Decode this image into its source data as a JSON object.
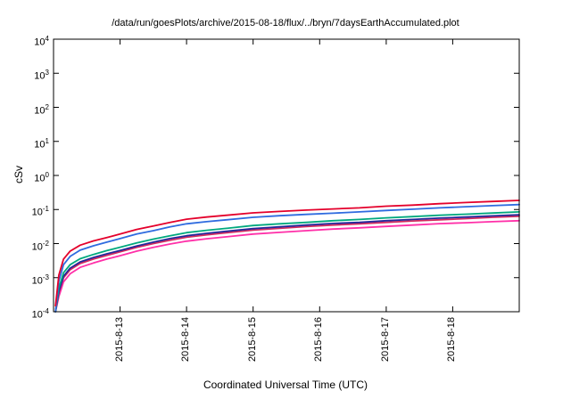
{
  "chart_data": {
    "type": "line",
    "title": "/data/run/goesPlots/archive/2015-08-18/flux/../bryn/7daysEarthAccumulated.plot",
    "xlabel": "Coordinated Universal Time (UTC)",
    "ylabel": "cSv",
    "grid": false,
    "legend": "none",
    "x_axis": {
      "range_days": [
        12,
        19
      ],
      "ticks": [
        {
          "label": "2015-8-13",
          "day": 13
        },
        {
          "label": "2015-8-14",
          "day": 14
        },
        {
          "label": "2015-8-15",
          "day": 15
        },
        {
          "label": "2015-8-16",
          "day": 16
        },
        {
          "label": "2015-8-17",
          "day": 17
        },
        {
          "label": "2015-8-18",
          "day": 18
        }
      ]
    },
    "y_axis": {
      "scale": "log",
      "range": [
        0.0001,
        10000
      ],
      "tick_exponents": [
        4,
        3,
        2,
        1,
        0,
        -1,
        -2,
        -3,
        -4
      ]
    },
    "x_days": [
      12.03,
      12.08,
      12.15,
      12.25,
      12.4,
      12.6,
      12.8,
      13.0,
      13.25,
      13.5,
      13.75,
      14.0,
      14.3,
      14.6,
      15.0,
      15.4,
      15.8,
      16.2,
      16.6,
      17.0,
      17.4,
      17.8,
      18.2,
      18.6,
      19.0
    ],
    "series": [
      {
        "name": "red",
        "color": "#e4002b",
        "values": [
          0.00015,
          0.0012,
          0.0035,
          0.006,
          0.009,
          0.012,
          0.015,
          0.019,
          0.026,
          0.033,
          0.042,
          0.052,
          0.06,
          0.068,
          0.08,
          0.088,
          0.096,
          0.104,
          0.112,
          0.125,
          0.135,
          0.148,
          0.16,
          0.172,
          0.185
        ]
      },
      {
        "name": "blue",
        "color": "#2f6bdf",
        "values": [
          0.0001,
          0.0008,
          0.0024,
          0.0042,
          0.0064,
          0.0086,
          0.011,
          0.014,
          0.019,
          0.024,
          0.031,
          0.038,
          0.044,
          0.05,
          0.059,
          0.066,
          0.072,
          0.078,
          0.085,
          0.094,
          0.102,
          0.112,
          0.121,
          0.13,
          0.14
        ]
      },
      {
        "name": "teal",
        "color": "#00a87e",
        "values": [
          0.0001,
          0.0005,
          0.0014,
          0.0024,
          0.0036,
          0.0048,
          0.0062,
          0.0078,
          0.0105,
          0.0135,
          0.017,
          0.021,
          0.0245,
          0.028,
          0.034,
          0.038,
          0.042,
          0.047,
          0.051,
          0.057,
          0.062,
          0.068,
          0.073,
          0.079,
          0.085
        ]
      },
      {
        "name": "navy",
        "color": "#23279b",
        "values": [
          0.0001,
          0.0004,
          0.0011,
          0.0019,
          0.0029,
          0.0039,
          0.005,
          0.0063,
          0.0085,
          0.011,
          0.014,
          0.017,
          0.02,
          0.023,
          0.0275,
          0.031,
          0.035,
          0.039,
          0.042,
          0.047,
          0.051,
          0.056,
          0.06,
          0.065,
          0.07
        ]
      },
      {
        "name": "crimson",
        "color": "#d42a5e",
        "values": [
          0.0001,
          0.00036,
          0.001,
          0.0017,
          0.0026,
          0.0035,
          0.0045,
          0.0057,
          0.0077,
          0.01,
          0.0126,
          0.0153,
          0.018,
          0.0207,
          0.0248,
          0.028,
          0.0315,
          0.035,
          0.038,
          0.042,
          0.046,
          0.05,
          0.054,
          0.059,
          0.063
        ]
      },
      {
        "name": "magenta",
        "color": "#ff2fa8",
        "values": [
          0.0001,
          0.00028,
          0.00075,
          0.0013,
          0.002,
          0.0027,
          0.0035,
          0.0044,
          0.006,
          0.0077,
          0.0097,
          0.0118,
          0.0138,
          0.0158,
          0.019,
          0.0214,
          0.024,
          0.0266,
          0.029,
          0.032,
          0.035,
          0.0385,
          0.041,
          0.044,
          0.047
        ]
      }
    ]
  }
}
